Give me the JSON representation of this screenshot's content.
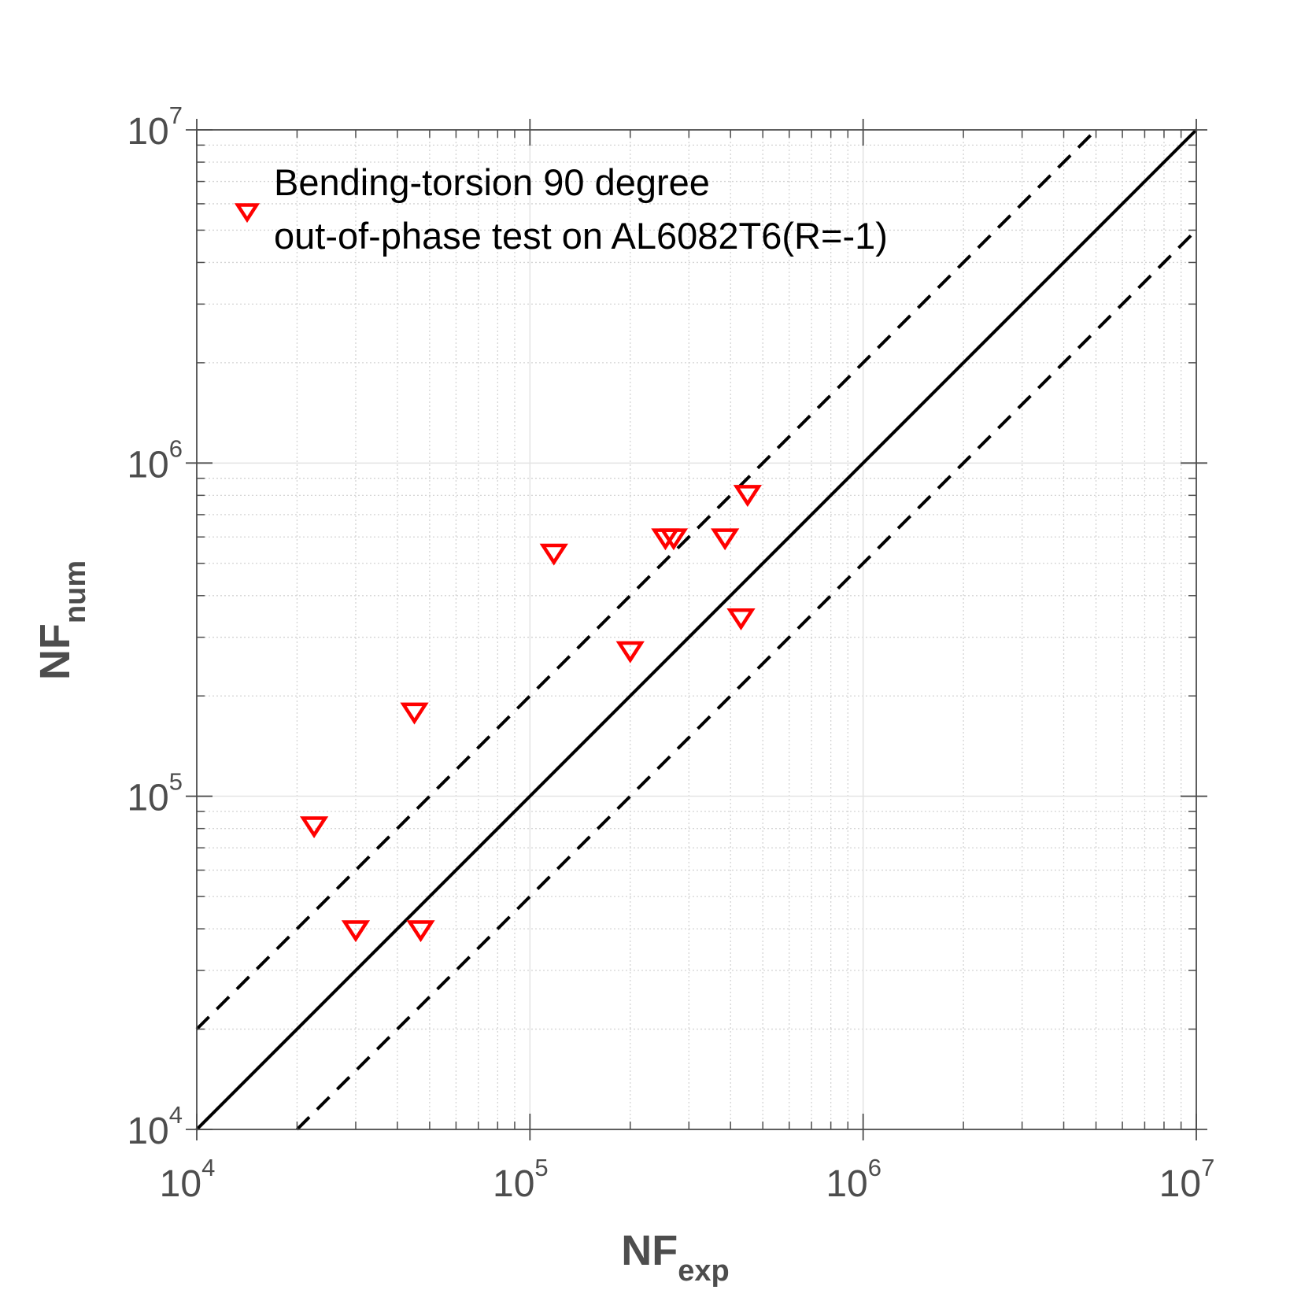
{
  "chart_data": {
    "type": "scatter",
    "xscale": "log",
    "yscale": "log",
    "xlim": [
      10000,
      10000000
    ],
    "ylim": [
      10000,
      10000000
    ],
    "grid": true,
    "legend_placement": "top-left",
    "xlabel": {
      "main": "NF",
      "sub": "exp"
    },
    "ylabel": {
      "main": "NF",
      "sub": "num"
    },
    "ticks": [
      {
        "base": "10",
        "exp": "4"
      },
      {
        "base": "10",
        "exp": "5"
      },
      {
        "base": "10",
        "exp": "6"
      },
      {
        "base": "10",
        "exp": "7"
      }
    ],
    "series": [
      {
        "name": "Bending-torsion 90 degree out-of-phase test on AL6082T6(R=-1)",
        "legend_lines": [
          "Bending-torsion 90 degree",
          "out-of-phase test on AL6082T6(R=-1)"
        ],
        "marker": "triangle-down",
        "color": "#ff0000",
        "points": [
          {
            "x": 22500,
            "y": 82000
          },
          {
            "x": 30000,
            "y": 40000
          },
          {
            "x": 45000,
            "y": 180000
          },
          {
            "x": 47000,
            "y": 40000
          },
          {
            "x": 118000,
            "y": 540000
          },
          {
            "x": 200000,
            "y": 275000
          },
          {
            "x": 255000,
            "y": 600000
          },
          {
            "x": 270000,
            "y": 600000
          },
          {
            "x": 385000,
            "y": 600000
          },
          {
            "x": 430000,
            "y": 345000
          },
          {
            "x": 450000,
            "y": 810000
          }
        ]
      }
    ],
    "reference_lines": [
      {
        "kind": "y=x",
        "style": "solid",
        "factor": 1,
        "color": "#000000"
      },
      {
        "kind": "y=2x",
        "style": "dashed",
        "factor": 2,
        "color": "#000000"
      },
      {
        "kind": "y=x/2",
        "style": "dashed",
        "factor": 0.5,
        "color": "#000000"
      }
    ]
  }
}
